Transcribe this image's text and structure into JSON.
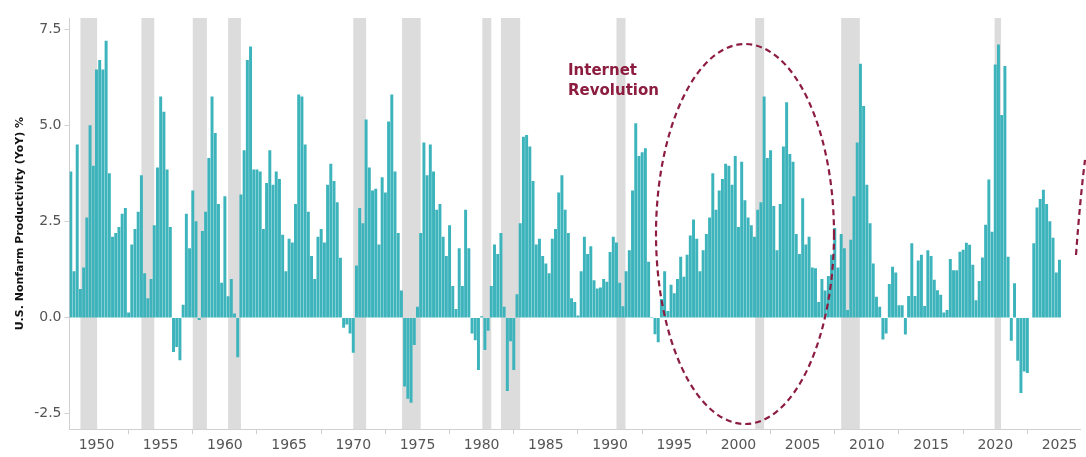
{
  "chart_data": {
    "type": "bar",
    "ylabel": "U.S. Nonfarm Productivity (YoY) %",
    "color": "#3db4bc",
    "x": [
      1948,
      1948.25,
      1948.5,
      1948.75,
      1949,
      1949.25,
      1949.5,
      1949.75,
      1950,
      1950.25,
      1950.5,
      1950.75,
      1951,
      1951.25,
      1951.5,
      1951.75,
      1952,
      1952.25,
      1952.5,
      1952.75,
      1953,
      1953.25,
      1953.5,
      1953.75,
      1954,
      1954.25,
      1954.5,
      1954.75,
      1955,
      1955.25,
      1955.5,
      1955.75,
      1956,
      1956.25,
      1956.5,
      1956.75,
      1957,
      1957.25,
      1957.5,
      1957.75,
      1958,
      1958.25,
      1958.5,
      1958.75,
      1959,
      1959.25,
      1959.5,
      1959.75,
      1960,
      1960.25,
      1960.5,
      1960.75,
      1961,
      1961.25,
      1961.5,
      1961.75,
      1962,
      1962.25,
      1962.5,
      1962.75,
      1963,
      1963.25,
      1963.5,
      1963.75,
      1964,
      1964.25,
      1964.5,
      1964.75,
      1965,
      1965.25,
      1965.5,
      1965.75,
      1966,
      1966.25,
      1966.5,
      1966.75,
      1967,
      1967.25,
      1967.5,
      1967.75,
      1968,
      1968.25,
      1968.5,
      1968.75,
      1969,
      1969.25,
      1969.5,
      1969.75,
      1970,
      1970.25,
      1970.5,
      1970.75,
      1971,
      1971.25,
      1971.5,
      1971.75,
      1972,
      1972.25,
      1972.5,
      1972.75,
      1973,
      1973.25,
      1973.5,
      1973.75,
      1974,
      1974.25,
      1974.5,
      1974.75,
      1975,
      1975.25,
      1975.5,
      1975.75,
      1976,
      1976.25,
      1976.5,
      1976.75,
      1977,
      1977.25,
      1977.5,
      1977.75,
      1978,
      1978.25,
      1978.5,
      1978.75,
      1979,
      1979.25,
      1979.5,
      1979.75,
      1980,
      1980.25,
      1980.5,
      1980.75,
      1981,
      1981.25,
      1981.5,
      1981.75,
      1982,
      1982.25,
      1982.5,
      1982.75,
      1983,
      1983.25,
      1983.5,
      1983.75,
      1984,
      1984.25,
      1984.5,
      1984.75,
      1985,
      1985.25,
      1985.5,
      1985.75,
      1986,
      1986.25,
      1986.5,
      1986.75,
      1987,
      1987.25,
      1987.5,
      1987.75,
      1988,
      1988.25,
      1988.5,
      1988.75,
      1989,
      1989.25,
      1989.5,
      1989.75,
      1990,
      1990.25,
      1990.5,
      1990.75,
      1991,
      1991.25,
      1991.5,
      1991.75,
      1992,
      1992.25,
      1992.5,
      1992.75,
      1993,
      1993.25,
      1993.5,
      1993.75,
      1994,
      1994.25,
      1994.5,
      1994.75,
      1995,
      1995.25,
      1995.5,
      1995.75,
      1996,
      1996.25,
      1996.5,
      1996.75,
      1997,
      1997.25,
      1997.5,
      1997.75,
      1998,
      1998.25,
      1998.5,
      1998.75,
      1999,
      1999.25,
      1999.5,
      1999.75,
      2000,
      2000.25,
      2000.5,
      2000.75,
      2001,
      2001.25,
      2001.5,
      2001.75,
      2002,
      2002.25,
      2002.5,
      2002.75,
      2003,
      2003.25,
      2003.5,
      2003.75,
      2004,
      2004.25,
      2004.5,
      2004.75,
      2005,
      2005.25,
      2005.5,
      2005.75,
      2006,
      2006.25,
      2006.5,
      2006.75,
      2007,
      2007.25,
      2007.5,
      2007.75,
      2008,
      2008.25,
      2008.5,
      2008.75,
      2009,
      2009.25,
      2009.5,
      2009.75,
      2010,
      2010.25,
      2010.5,
      2010.75,
      2011,
      2011.25,
      2011.5,
      2011.75,
      2012,
      2012.25,
      2012.5,
      2012.75,
      2013,
      2013.25,
      2013.5,
      2013.75,
      2014,
      2014.25,
      2014.5,
      2014.75,
      2015,
      2015.25,
      2015.5,
      2015.75,
      2016,
      2016.25,
      2016.5,
      2016.75,
      2017,
      2017.25,
      2017.5,
      2017.75,
      2018,
      2018.25,
      2018.5,
      2018.75,
      2019,
      2019.25,
      2019.5,
      2019.75,
      2020,
      2020.25,
      2020.5,
      2020.75,
      2021,
      2021.25,
      2021.5,
      2021.75,
      2022,
      2022.25,
      2022.5,
      2022.75,
      2023,
      2023.25,
      2023.5,
      2023.75,
      2024,
      2024.25,
      2024.5,
      2024.75,
      2025
    ],
    "values": [
      3.8,
      1.2,
      4.5,
      0.74,
      1.3,
      2.6,
      5.0,
      3.95,
      6.45,
      6.7,
      6.45,
      7.2,
      3.75,
      2.1,
      2.2,
      2.35,
      2.7,
      2.85,
      0.13,
      1.9,
      2.3,
      2.75,
      3.7,
      1.15,
      0.5,
      1.0,
      2.4,
      3.9,
      5.75,
      5.35,
      3.85,
      2.35,
      -0.88,
      -0.75,
      -1.1,
      0.33,
      2.7,
      1.8,
      3.3,
      2.5,
      -0.05,
      2.25,
      2.75,
      4.15,
      5.75,
      4.8,
      2.95,
      0.9,
      3.15,
      0.55,
      1.0,
      0.1,
      -1.02,
      3.2,
      4.35,
      6.7,
      7.05,
      3.85,
      3.85,
      3.8,
      2.3,
      3.5,
      4.35,
      3.45,
      3.8,
      3.6,
      2.15,
      1.2,
      2.05,
      1.95,
      2.95,
      5.8,
      5.75,
      4.5,
      2.75,
      1.6,
      1.0,
      2.1,
      2.3,
      1.95,
      3.45,
      4.0,
      3.55,
      3.0,
      1.55,
      -0.25,
      -0.17,
      -0.4,
      -0.9,
      1.35,
      2.85,
      2.45,
      5.15,
      3.9,
      3.3,
      3.35,
      1.9,
      3.65,
      3.25,
      5.1,
      5.8,
      3.8,
      2.2,
      0.7,
      -1.78,
      -2.1,
      -2.2,
      -0.7,
      0.28,
      2.2,
      4.55,
      3.7,
      4.5,
      3.8,
      2.8,
      2.95,
      2.1,
      1.6,
      2.4,
      0.82,
      0.22,
      1.8,
      0.82,
      2.8,
      1.8,
      -0.4,
      -0.58,
      -1.35,
      0.03,
      -0.83,
      -0.33,
      0.82,
      1.9,
      1.65,
      2.2,
      0.28,
      -1.9,
      -0.6,
      -1.35,
      0.6,
      2.45,
      4.7,
      4.75,
      4.45,
      3.55,
      1.9,
      2.05,
      1.6,
      1.4,
      1.15,
      2.05,
      2.3,
      3.25,
      3.7,
      2.8,
      2.2,
      0.5,
      0.4,
      0.05,
      1.2,
      2.1,
      1.65,
      1.85,
      0.97,
      0.75,
      0.78,
      1.0,
      0.93,
      1.7,
      2.1,
      1.95,
      0.9,
      0.29,
      1.2,
      1.75,
      3.3,
      5.05,
      4.2,
      4.3,
      4.4,
      1.45,
      0.0,
      -0.42,
      -0.63,
      0.48,
      1.2,
      0.17,
      0.85,
      0.63,
      1.0,
      1.58,
      1.06,
      1.63,
      2.13,
      2.55,
      2.05,
      1.2,
      1.75,
      2.17,
      2.6,
      3.75,
      2.8,
      3.3,
      3.6,
      4.0,
      3.95,
      3.45,
      4.2,
      2.35,
      4.05,
      3.05,
      2.6,
      2.4,
      2.1,
      2.8,
      3.0,
      5.75,
      4.15,
      4.35,
      2.9,
      1.75,
      2.95,
      4.45,
      5.6,
      4.25,
      4.05,
      2.17,
      1.65,
      3.1,
      1.9,
      2.1,
      1.3,
      1.28,
      0.4,
      1.0,
      0.7,
      1.08,
      1.63,
      2.33,
      1.3,
      2.17,
      1.8,
      0.19,
      2.02,
      3.15,
      4.55,
      6.6,
      5.5,
      3.45,
      2.45,
      1.4,
      0.54,
      0.28,
      -0.56,
      -0.4,
      0.87,
      1.32,
      1.17,
      0.32,
      0.32,
      -0.43,
      0.56,
      1.93,
      0.56,
      1.48,
      1.63,
      0.3,
      1.75,
      1.6,
      0.98,
      0.71,
      0.59,
      0.13,
      0.19,
      1.52,
      1.23,
      1.23,
      1.71,
      1.76,
      1.94,
      1.89,
      1.37,
      0.45,
      0.95,
      1.56,
      2.41,
      3.59,
      2.23,
      6.58,
      7.1,
      5.27,
      6.54,
      1.58,
      -0.59,
      0.89,
      -1.11,
      -1.95,
      -1.39,
      -1.43,
      null,
      1.93,
      2.86,
      3.08,
      3.32,
      2.95,
      2.5,
      2.07,
      1.17,
      1.5
    ],
    "xlim": [
      1947.9,
      2026.6
    ],
    "xticks": [
      1950,
      1955,
      1960,
      1965,
      1970,
      1975,
      1980,
      1985,
      1990,
      1995,
      2000,
      2005,
      2010,
      2015,
      2020,
      2025
    ],
    "ylim": [
      -2.9,
      7.8
    ],
    "yticks": [
      {
        "value": -2.5,
        "label": "-2.5"
      },
      {
        "value": 0,
        "label": "0.0"
      },
      {
        "value": 2.5,
        "label": "2.5"
      },
      {
        "value": 5,
        "label": "5.0"
      },
      {
        "value": 7.5,
        "label": "7.5"
      }
    ],
    "bands": [
      {
        "axis": "x",
        "from": 1948.75,
        "to": 1950.05,
        "color": "#dcdcdc"
      },
      {
        "axis": "x",
        "from": 1953.5,
        "to": 1954.5,
        "color": "#dcdcdc"
      },
      {
        "axis": "x",
        "from": 1957.5,
        "to": 1958.6,
        "color": "#dcdcdc"
      },
      {
        "axis": "x",
        "from": 1960.25,
        "to": 1961.25,
        "color": "#dcdcdc"
      },
      {
        "axis": "x",
        "from": 1970,
        "to": 1971,
        "color": "#dcdcdc"
      },
      {
        "axis": "x",
        "from": 1973.8,
        "to": 1975.25,
        "color": "#dcdcdc"
      },
      {
        "axis": "x",
        "from": 1980.05,
        "to": 1980.75,
        "color": "#dcdcdc"
      },
      {
        "axis": "x",
        "from": 1981.5,
        "to": 1983,
        "color": "#dcdcdc"
      },
      {
        "axis": "x",
        "from": 1990.5,
        "to": 1991.2,
        "color": "#dcdcdc"
      },
      {
        "axis": "x",
        "from": 2001.3,
        "to": 2002,
        "color": "#dcdcdc"
      },
      {
        "axis": "x",
        "from": 2008,
        "to": 2009.45,
        "color": "#dcdcdc"
      },
      {
        "axis": "x",
        "from": 2019.95,
        "to": 2020.45,
        "color": "#dcdcdc"
      }
    ],
    "annotations": [
      "Internet Revolution"
    ]
  }
}
